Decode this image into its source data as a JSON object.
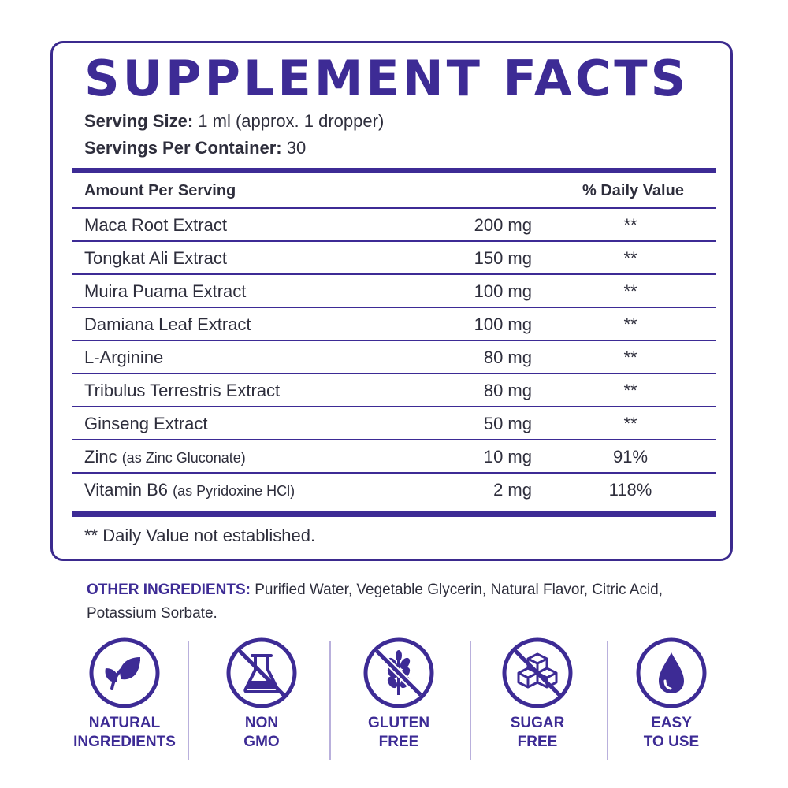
{
  "title": "SUPPLEMENT FACTS",
  "serving_size": {
    "label": "Serving Size:",
    "value": "1 ml (approx. 1 dropper)"
  },
  "servings_per_container": {
    "label": "Servings Per Container:",
    "value": "30"
  },
  "table": {
    "amount_header": "Amount Per Serving",
    "dv_header": "% Daily Value",
    "rows": [
      {
        "name": "Maca Root Extract",
        "sub": "",
        "amount": "200 mg",
        "dv": "**"
      },
      {
        "name": "Tongkat Ali Extract",
        "sub": "",
        "amount": "150 mg",
        "dv": "**"
      },
      {
        "name": "Muira Puama Extract",
        "sub": "",
        "amount": "100 mg",
        "dv": "**"
      },
      {
        "name": "Damiana Leaf Extract",
        "sub": "",
        "amount": "100 mg",
        "dv": "**"
      },
      {
        "name": "L-Arginine",
        "sub": "",
        "amount": "80 mg",
        "dv": "**"
      },
      {
        "name": "Tribulus Terrestris Extract",
        "sub": "",
        "amount": "80 mg",
        "dv": "**"
      },
      {
        "name": "Ginseng Extract",
        "sub": "",
        "amount": "50 mg",
        "dv": "**"
      },
      {
        "name": "Zinc",
        "sub": "(as Zinc Gluconate)",
        "amount": "10 mg",
        "dv": "91%"
      },
      {
        "name": "Vitamin B6",
        "sub": "(as Pyridoxine HCl)",
        "amount": "2 mg",
        "dv": "118%"
      }
    ]
  },
  "footnote": "** Daily Value not established.",
  "other_ingredients": {
    "label": "OTHER INGREDIENTS:",
    "text": "Purified Water, Vegetable Glycerin, Natural Flavor, Citric Acid, Potassium Sorbate."
  },
  "badges": [
    {
      "icon": "leaf-icon",
      "line1": "NATURAL",
      "line2": "INGREDIENTS"
    },
    {
      "icon": "no-gmo-flask-icon",
      "line1": "NON",
      "line2": "GMO"
    },
    {
      "icon": "no-wheat-icon",
      "line1": "GLUTEN",
      "line2": "FREE"
    },
    {
      "icon": "no-sugar-cubes-icon",
      "line1": "SUGAR",
      "line2": "FREE"
    },
    {
      "icon": "droplet-icon",
      "line1": "EASY",
      "line2": "TO USE"
    }
  ],
  "colors": {
    "brand_purple": "#3d2b95",
    "text": "#2e2e3c"
  }
}
